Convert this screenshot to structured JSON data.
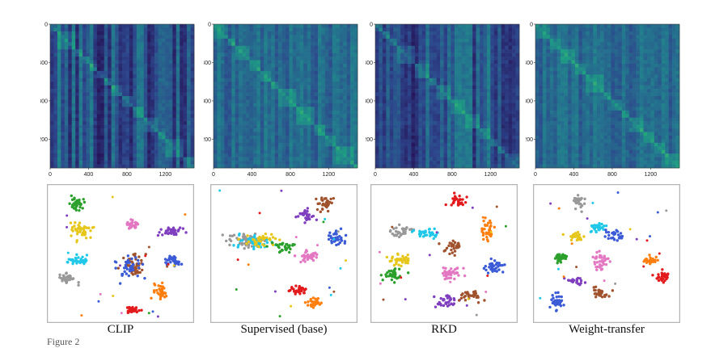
{
  "figure_label": "Figure 2",
  "chart_data": [
    {
      "type": "heatmap",
      "panel": "CLIP",
      "title": "",
      "xticks": [
        "0",
        "400",
        "800",
        "1200"
      ],
      "yticks": [
        "0",
        "400",
        "800",
        "1200"
      ],
      "xlim": [
        0,
        1500
      ],
      "ylim": [
        0,
        1500
      ],
      "colormap": "viridis",
      "value_range": [
        0.15,
        0.45
      ],
      "note": "block-diagonal similarity with strong dark vertical bands"
    },
    {
      "type": "heatmap",
      "panel": "Supervised (base)",
      "title": "",
      "xticks": [
        "0",
        "400",
        "800",
        "1200"
      ],
      "yticks": [
        "0",
        "400",
        "800",
        "1200"
      ],
      "xlim": [
        0,
        1500
      ],
      "ylim": [
        0,
        1500
      ],
      "colormap": "viridis",
      "value_range": [
        0.25,
        0.55
      ],
      "note": ""
    },
    {
      "type": "heatmap",
      "panel": "RKD",
      "title": "",
      "xticks": [
        "0",
        "400",
        "800",
        "1200"
      ],
      "yticks": [
        "0",
        "400",
        "800",
        "1200"
      ],
      "xlim": [
        0,
        1500
      ],
      "ylim": [
        0,
        1500
      ],
      "colormap": "viridis",
      "value_range": [
        0.1,
        0.45
      ],
      "note": ""
    },
    {
      "type": "heatmap",
      "panel": "Weight-transfer",
      "title": "",
      "xticks": [
        "0",
        "400",
        "800",
        "1200"
      ],
      "yticks": [
        "0",
        "400",
        "800",
        "1200"
      ],
      "xlim": [
        0,
        1500
      ],
      "ylim": [
        0,
        1500
      ],
      "colormap": "viridis",
      "value_range": [
        0.25,
        0.55
      ],
      "note": ""
    },
    {
      "type": "scatter",
      "panel": "CLIP",
      "xlabel": "CLIP",
      "clusters": [
        {
          "color": "#2ca02c",
          "cx": 0.18,
          "cy": 0.12,
          "sx": 0.05,
          "sy": 0.04,
          "n": 40
        },
        {
          "color": "#e6c619",
          "cx": 0.21,
          "cy": 0.32,
          "sx": 0.07,
          "sy": 0.05,
          "n": 45
        },
        {
          "color": "#1fc8e8",
          "cx": 0.2,
          "cy": 0.55,
          "sx": 0.06,
          "sy": 0.03,
          "n": 35
        },
        {
          "color": "#999999",
          "cx": 0.13,
          "cy": 0.69,
          "sx": 0.05,
          "sy": 0.04,
          "n": 35
        },
        {
          "color": "#e377c2",
          "cx": 0.59,
          "cy": 0.28,
          "sx": 0.04,
          "sy": 0.03,
          "n": 35
        },
        {
          "color": "#7f3fbf",
          "cx": 0.87,
          "cy": 0.33,
          "sx": 0.06,
          "sy": 0.03,
          "n": 35
        },
        {
          "color": "#3b5bd6",
          "cx": 0.88,
          "cy": 0.56,
          "sx": 0.05,
          "sy": 0.03,
          "n": 35
        },
        {
          "color": "#a0522d",
          "cx": 0.6,
          "cy": 0.59,
          "sx": 0.06,
          "sy": 0.07,
          "n": 45
        },
        {
          "color": "#3b5bd6",
          "cx": 0.57,
          "cy": 0.6,
          "sx": 0.07,
          "sy": 0.07,
          "n": 40
        },
        {
          "color": "#ff7f0e",
          "cx": 0.79,
          "cy": 0.8,
          "sx": 0.04,
          "sy": 0.05,
          "n": 35
        },
        {
          "color": "#e31a1c",
          "cx": 0.59,
          "cy": 0.93,
          "sx": 0.05,
          "sy": 0.02,
          "n": 35
        }
      ]
    },
    {
      "type": "scatter",
      "panel": "Supervised (base)",
      "xlabel": "Supervised (base)",
      "clusters": [
        {
          "color": "#999999",
          "cx": 0.22,
          "cy": 0.4,
          "sx": 0.12,
          "sy": 0.04,
          "n": 55
        },
        {
          "color": "#1fc8e8",
          "cx": 0.28,
          "cy": 0.42,
          "sx": 0.12,
          "sy": 0.04,
          "n": 45
        },
        {
          "color": "#e6c619",
          "cx": 0.35,
          "cy": 0.4,
          "sx": 0.1,
          "sy": 0.04,
          "n": 40
        },
        {
          "color": "#2ca02c",
          "cx": 0.5,
          "cy": 0.45,
          "sx": 0.06,
          "sy": 0.04,
          "n": 30
        },
        {
          "color": "#e377c2",
          "cx": 0.67,
          "cy": 0.52,
          "sx": 0.06,
          "sy": 0.04,
          "n": 35
        },
        {
          "color": "#a0522d",
          "cx": 0.8,
          "cy": 0.12,
          "sx": 0.05,
          "sy": 0.05,
          "n": 35
        },
        {
          "color": "#7f3fbf",
          "cx": 0.66,
          "cy": 0.21,
          "sx": 0.05,
          "sy": 0.04,
          "n": 30
        },
        {
          "color": "#3b5bd6",
          "cx": 0.87,
          "cy": 0.38,
          "sx": 0.06,
          "sy": 0.04,
          "n": 35
        },
        {
          "color": "#e31a1c",
          "cx": 0.6,
          "cy": 0.78,
          "sx": 0.06,
          "sy": 0.03,
          "n": 35
        },
        {
          "color": "#ff7f0e",
          "cx": 0.72,
          "cy": 0.88,
          "sx": 0.04,
          "sy": 0.03,
          "n": 30
        }
      ]
    },
    {
      "type": "scatter",
      "panel": "RKD",
      "xlabel": "RKD",
      "clusters": [
        {
          "color": "#e31a1c",
          "cx": 0.6,
          "cy": 0.1,
          "sx": 0.05,
          "sy": 0.04,
          "n": 30
        },
        {
          "color": "#ff7f0e",
          "cx": 0.82,
          "cy": 0.33,
          "sx": 0.04,
          "sy": 0.07,
          "n": 35
        },
        {
          "color": "#999999",
          "cx": 0.18,
          "cy": 0.33,
          "sx": 0.07,
          "sy": 0.03,
          "n": 35
        },
        {
          "color": "#1fc8e8",
          "cx": 0.37,
          "cy": 0.35,
          "sx": 0.07,
          "sy": 0.03,
          "n": 35
        },
        {
          "color": "#a0522d",
          "cx": 0.57,
          "cy": 0.45,
          "sx": 0.05,
          "sy": 0.06,
          "n": 35
        },
        {
          "color": "#e6c619",
          "cx": 0.18,
          "cy": 0.55,
          "sx": 0.07,
          "sy": 0.04,
          "n": 40
        },
        {
          "color": "#2ca02c",
          "cx": 0.14,
          "cy": 0.66,
          "sx": 0.05,
          "sy": 0.04,
          "n": 35
        },
        {
          "color": "#e377c2",
          "cx": 0.55,
          "cy": 0.64,
          "sx": 0.06,
          "sy": 0.05,
          "n": 40
        },
        {
          "color": "#3b5bd6",
          "cx": 0.86,
          "cy": 0.6,
          "sx": 0.06,
          "sy": 0.05,
          "n": 35
        },
        {
          "color": "#7f3fbf",
          "cx": 0.52,
          "cy": 0.87,
          "sx": 0.07,
          "sy": 0.04,
          "n": 35
        },
        {
          "color": "#a0522d",
          "cx": 0.7,
          "cy": 0.82,
          "sx": 0.06,
          "sy": 0.04,
          "n": 30
        }
      ]
    },
    {
      "type": "scatter",
      "panel": "Weight-transfer",
      "xlabel": "Weight-transfer",
      "clusters": [
        {
          "color": "#999999",
          "cx": 0.3,
          "cy": 0.1,
          "sx": 0.04,
          "sy": 0.05,
          "n": 30
        },
        {
          "color": "#1fc8e8",
          "cx": 0.42,
          "cy": 0.3,
          "sx": 0.05,
          "sy": 0.04,
          "n": 30
        },
        {
          "color": "#e6c619",
          "cx": 0.28,
          "cy": 0.38,
          "sx": 0.05,
          "sy": 0.03,
          "n": 25
        },
        {
          "color": "#3b5bd6",
          "cx": 0.56,
          "cy": 0.36,
          "sx": 0.06,
          "sy": 0.03,
          "n": 25
        },
        {
          "color": "#2ca02c",
          "cx": 0.16,
          "cy": 0.53,
          "sx": 0.05,
          "sy": 0.03,
          "n": 30
        },
        {
          "color": "#e377c2",
          "cx": 0.46,
          "cy": 0.57,
          "sx": 0.05,
          "sy": 0.06,
          "n": 35
        },
        {
          "color": "#ff7f0e",
          "cx": 0.82,
          "cy": 0.55,
          "sx": 0.05,
          "sy": 0.03,
          "n": 30
        },
        {
          "color": "#e31a1c",
          "cx": 0.9,
          "cy": 0.67,
          "sx": 0.05,
          "sy": 0.04,
          "n": 30
        },
        {
          "color": "#7f3fbf",
          "cx": 0.27,
          "cy": 0.7,
          "sx": 0.05,
          "sy": 0.03,
          "n": 25
        },
        {
          "color": "#a0522d",
          "cx": 0.46,
          "cy": 0.8,
          "sx": 0.06,
          "sy": 0.04,
          "n": 30
        },
        {
          "color": "#3b5bd6",
          "cx": 0.15,
          "cy": 0.87,
          "sx": 0.05,
          "sy": 0.05,
          "n": 35
        }
      ]
    }
  ],
  "captions": [
    "CLIP",
    "Supervised (base)",
    "RKD",
    "Weight-transfer"
  ]
}
